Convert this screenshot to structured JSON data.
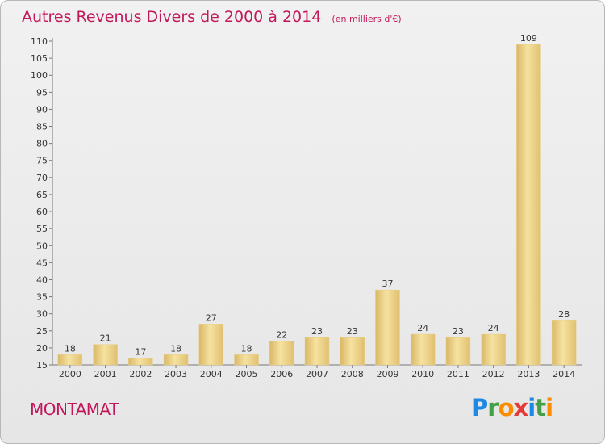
{
  "header": {
    "title": "Autres Revenus Divers de 2000 à 2014",
    "unit": "(en milliers d'€)"
  },
  "footer": {
    "commune": "MONTAMAT",
    "brand_letters": [
      {
        "ch": "P",
        "color": "#1e88e5"
      },
      {
        "ch": "r",
        "color": "#43a047"
      },
      {
        "ch": "o",
        "color": "#fb8c00"
      },
      {
        "ch": "x",
        "color": "#e53935"
      },
      {
        "ch": "i",
        "color": "#1e88e5"
      },
      {
        "ch": "t",
        "color": "#43a047"
      },
      {
        "ch": "i",
        "color": "#fb8c00"
      }
    ]
  },
  "colors": {
    "accent": "#c2185b",
    "bar_light": "#f6e2a0",
    "bar_dark": "#d9b766",
    "axis": "#777777",
    "background": "#eaeaea"
  },
  "chart_data": {
    "type": "bar",
    "categories": [
      "2000",
      "2001",
      "2002",
      "2003",
      "2004",
      "2005",
      "2006",
      "2007",
      "2008",
      "2009",
      "2010",
      "2011",
      "2012",
      "2013",
      "2014"
    ],
    "values": [
      18,
      21,
      17,
      18,
      27,
      18,
      22,
      23,
      23,
      37,
      24,
      23,
      24,
      109,
      28
    ],
    "ylim": [
      15,
      110
    ],
    "yticks": [
      15,
      20,
      25,
      30,
      35,
      40,
      45,
      50,
      55,
      60,
      65,
      70,
      75,
      80,
      85,
      90,
      95,
      100,
      105,
      110
    ],
    "grid": false,
    "data_labels": true
  }
}
